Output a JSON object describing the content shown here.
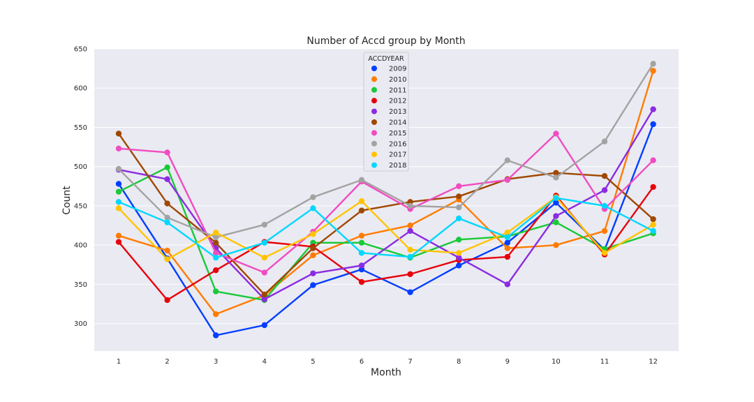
{
  "chart_data": {
    "type": "line",
    "title": "Number of Accd group by Month",
    "xlabel": "Month",
    "ylabel": "Count",
    "categories": [
      "1",
      "2",
      "3",
      "4",
      "5",
      "6",
      "7",
      "8",
      "9",
      "10",
      "11",
      "12"
    ],
    "ylim": [
      265,
      650
    ],
    "yticks": [
      300,
      350,
      400,
      450,
      500,
      550,
      600,
      650
    ],
    "grid": true,
    "legend": {
      "title": "ACCDYEAR",
      "position": "top-center"
    },
    "series": [
      {
        "name": "2009",
        "color": "#023eff",
        "values": [
          478,
          383,
          285,
          298,
          349,
          369,
          340,
          374,
          403,
          454,
          394,
          554
        ]
      },
      {
        "name": "2010",
        "color": "#ff7c00",
        "values": [
          412,
          393,
          312,
          336,
          387,
          412,
          425,
          458,
          396,
          400,
          418,
          622
        ]
      },
      {
        "name": "2011",
        "color": "#1ac938",
        "values": [
          468,
          499,
          341,
          330,
          403,
          403,
          384,
          407,
          411,
          429,
          395,
          415
        ]
      },
      {
        "name": "2012",
        "color": "#e8000b",
        "values": [
          404,
          330,
          368,
          404,
          398,
          353,
          363,
          381,
          385,
          463,
          388,
          474
        ]
      },
      {
        "name": "2013",
        "color": "#8b2be2",
        "values": [
          496,
          484,
          396,
          331,
          364,
          374,
          418,
          384,
          350,
          437,
          470,
          573
        ]
      },
      {
        "name": "2014",
        "color": "#9f4800",
        "values": [
          542,
          453,
          403,
          337,
          396,
          444,
          455,
          462,
          484,
          492,
          488,
          433
        ]
      },
      {
        "name": "2015",
        "color": "#f14cc1",
        "values": [
          523,
          518,
          390,
          365,
          417,
          481,
          446,
          475,
          483,
          542,
          446,
          508
        ]
      },
      {
        "name": "2016",
        "color": "#a3a3a3",
        "values": [
          497,
          435,
          410,
          426,
          461,
          483,
          450,
          448,
          508,
          486,
          532,
          631
        ]
      },
      {
        "name": "2017",
        "color": "#ffc400",
        "values": [
          447,
          382,
          416,
          384,
          414,
          456,
          394,
          390,
          416,
          461,
          390,
          426
        ]
      },
      {
        "name": "2018",
        "color": "#00d7ff",
        "values": [
          455,
          429,
          384,
          403,
          447,
          390,
          385,
          434,
          410,
          460,
          450,
          418
        ]
      }
    ]
  }
}
